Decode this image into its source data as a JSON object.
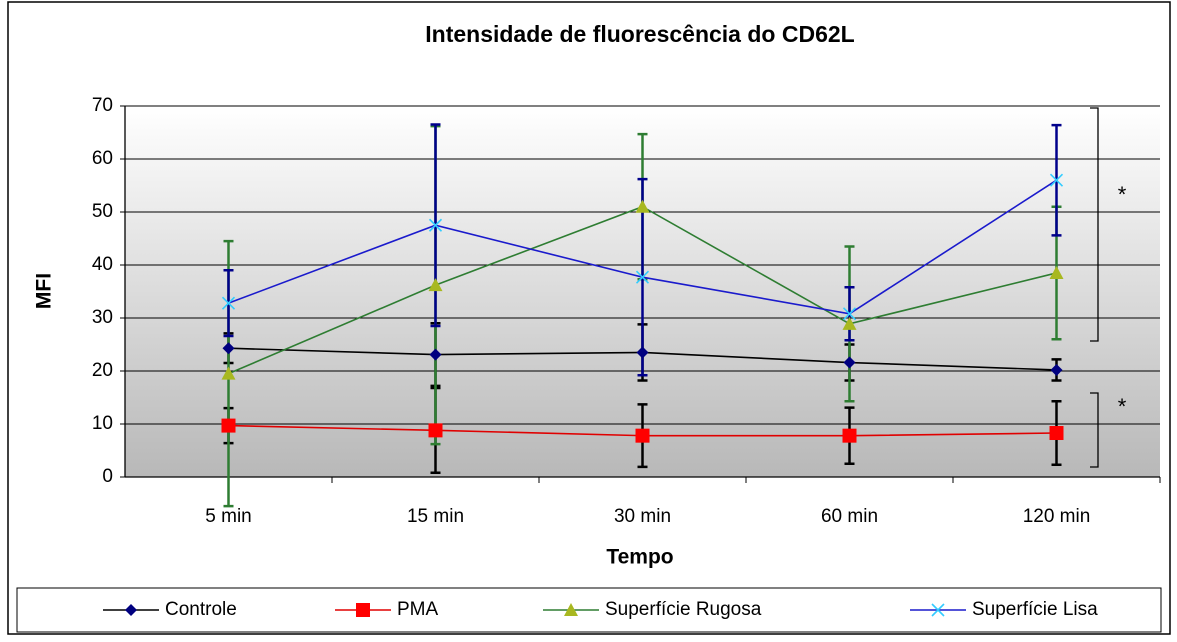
{
  "chart_data": {
    "type": "line",
    "title": "Intensidade de fluorescência do CD62L",
    "x_label": "Tempo",
    "y_label": "MFI",
    "categories": [
      "5 min",
      "15 min",
      "30 min",
      "60 min",
      "120 min"
    ],
    "ylim": [
      0,
      70
    ],
    "yticks": [
      0,
      10,
      20,
      30,
      40,
      50,
      60,
      70
    ],
    "grid": true,
    "legend": "bottom",
    "series": [
      {
        "name": "Controle",
        "color": "#000000",
        "marker_color": "#000080",
        "marker": "diamond",
        "error_color": "#000000",
        "values": [
          24.3,
          23.1,
          23.5,
          21.6,
          20.2
        ],
        "errors": [
          2.8,
          5.9,
          5.3,
          3.4,
          2
        ]
      },
      {
        "name": "PMA",
        "color": "#e00000",
        "marker_color": "#ff0000",
        "marker": "square",
        "error_color": "#000000",
        "values": [
          9.7,
          8.8,
          7.8,
          7.8,
          8.3
        ],
        "errors": [
          3.3,
          8,
          5.9,
          5.3,
          6
        ]
      },
      {
        "name": "Superfície Rugosa",
        "color": "#2e7d32",
        "marker_color": "#a8b820",
        "marker": "triangle",
        "error_color": "#2e7d32",
        "values": [
          19.5,
          36.2,
          51,
          28.9,
          38.5
        ],
        "errors": [
          25,
          30,
          13.7,
          14.6,
          12.5
        ]
      },
      {
        "name": "Superfície Lisa",
        "color": "#1a1acc",
        "marker_color": "#33ccff",
        "marker": "x",
        "error_color": "#00008b",
        "values": [
          32.8,
          47.5,
          37.7,
          30.8,
          56
        ],
        "errors": [
          6.2,
          19,
          18.5,
          5,
          10.4
        ]
      }
    ],
    "annotations": [
      {
        "text": "*"
      },
      {
        "text": "*"
      }
    ]
  }
}
